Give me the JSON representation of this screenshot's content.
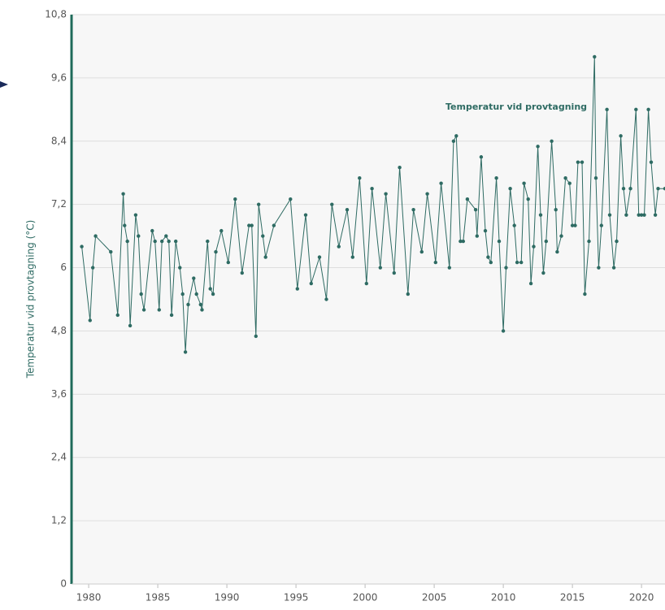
{
  "chart_data": {
    "type": "line",
    "ylabel": "Temperatur vid provtagning (°C)",
    "annotation": "Temperatur vid provtagning",
    "xlim": [
      1978.76,
      2021.7
    ],
    "xticks": [
      1980,
      1985,
      1990,
      1995,
      2000,
      2005,
      2010,
      2015,
      2020
    ],
    "ylim": [
      0,
      10.8
    ],
    "yticks": [
      0,
      {
        "value": 1.2,
        "label": "1,2"
      },
      {
        "value": 2.4,
        "label": "2,4"
      },
      {
        "value": 3.6,
        "label": "3,6"
      },
      {
        "value": 4.8,
        "label": "4,8"
      },
      6,
      {
        "value": 7.2,
        "label": "7,2"
      },
      {
        "value": 8.4,
        "label": "8,4"
      },
      {
        "value": 9.6,
        "label": "9,6"
      },
      {
        "value": 10.8,
        "label": "10,8"
      }
    ],
    "grid": true,
    "series": [
      {
        "name": "Temperatur vid provtagning",
        "color": "#2e6b63",
        "x": [
          1979.5,
          1980.1,
          1980.3,
          1980.5,
          1981.6,
          1982.1,
          1982.5,
          1982.6,
          1982.8,
          1983.0,
          1983.4,
          1983.6,
          1983.8,
          1984.0,
          1984.6,
          1984.8,
          1985.1,
          1985.3,
          1985.6,
          1985.8,
          1986.0,
          1986.3,
          1986.6,
          1986.8,
          1987.0,
          1987.2,
          1987.6,
          1987.8,
          1988.1,
          1988.2,
          1988.6,
          1988.8,
          1989.0,
          1989.2,
          1989.6,
          1990.1,
          1990.6,
          1991.1,
          1991.6,
          1991.8,
          1992.1,
          1992.3,
          1992.6,
          1992.8,
          1993.4,
          1994.6,
          1995.1,
          1995.7,
          1996.1,
          1996.7,
          1997.2,
          1997.6,
          1998.1,
          1998.7,
          1999.1,
          1999.6,
          2000.1,
          2000.5,
          2001.1,
          2001.5,
          2002.1,
          2002.5,
          2003.1,
          2003.5,
          2004.1,
          2004.5,
          2005.1,
          2005.5,
          2006.1,
          2006.4,
          2006.6,
          2006.9,
          2007.1,
          2007.4,
          2008.0,
          2008.1,
          2008.4,
          2008.7,
          2008.9,
          2009.1,
          2009.5,
          2009.7,
          2010.0,
          2010.2,
          2010.5,
          2010.8,
          2011.0,
          2011.3,
          2011.5,
          2011.8,
          2012.0,
          2012.2,
          2012.5,
          2012.7,
          2012.9,
          2013.1,
          2013.5,
          2013.8,
          2013.9,
          2014.2,
          2014.5,
          2014.8,
          2015.0,
          2015.2,
          2015.4,
          2015.7,
          2015.9,
          2016.2,
          2016.6,
          2016.7,
          2016.9,
          2017.1,
          2017.5,
          2017.7,
          2018.0,
          2018.2,
          2018.5,
          2018.7,
          2018.9,
          2019.2,
          2019.6,
          2019.8,
          2020.0,
          2020.2,
          2020.5,
          2020.7,
          2021.0,
          2021.2,
          2021.7
        ],
        "values": [
          6.4,
          5.0,
          6.0,
          6.6,
          6.3,
          5.1,
          7.4,
          6.8,
          6.5,
          4.9,
          7.0,
          6.6,
          5.5,
          5.2,
          6.7,
          6.5,
          5.2,
          6.5,
          6.6,
          6.5,
          5.1,
          6.5,
          6.0,
          5.5,
          4.4,
          5.3,
          5.8,
          5.5,
          5.3,
          5.2,
          6.5,
          5.6,
          5.5,
          6.3,
          6.7,
          6.1,
          7.3,
          5.9,
          6.8,
          6.8,
          4.7,
          7.2,
          6.6,
          6.2,
          6.8,
          7.3,
          5.6,
          7.0,
          5.7,
          6.2,
          5.4,
          7.2,
          6.4,
          7.1,
          6.2,
          7.7,
          5.7,
          7.5,
          6.0,
          7.4,
          5.9,
          7.9,
          5.5,
          7.1,
          6.3,
          7.4,
          6.1,
          7.6,
          6.0,
          8.4,
          8.5,
          6.5,
          6.5,
          7.3,
          7.1,
          6.6,
          8.1,
          6.7,
          6.2,
          6.1,
          7.7,
          6.5,
          4.8,
          6.0,
          7.5,
          6.8,
          6.1,
          6.1,
          7.6,
          7.3,
          5.7,
          6.4,
          8.3,
          7.0,
          5.9,
          6.5,
          8.4,
          7.1,
          6.3,
          6.6,
          7.7,
          7.6,
          6.8,
          6.8,
          8.0,
          8.0,
          5.5,
          6.5,
          10.0,
          7.7,
          6.0,
          6.8,
          9.0,
          7.0,
          6.0,
          6.5,
          8.5,
          7.5,
          7.0,
          7.5,
          9.0,
          7.0,
          7.0,
          7.0,
          9.0,
          8.0,
          7.0,
          7.5,
          7.5
        ]
      }
    ]
  }
}
